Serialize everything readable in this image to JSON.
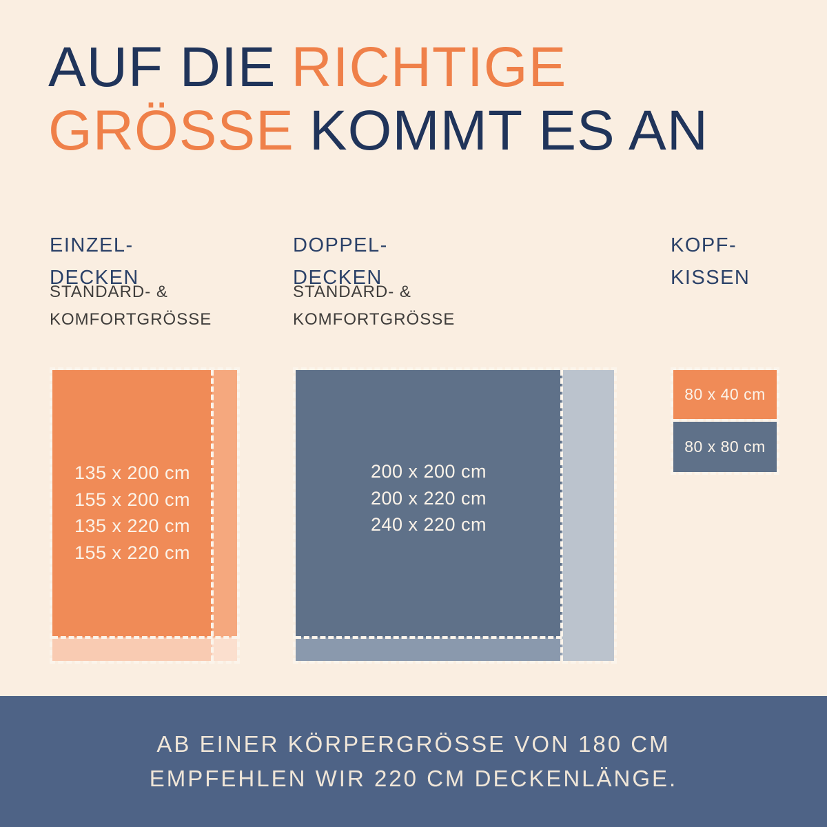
{
  "title": {
    "part1": "AUF DIE",
    "part2": "RICHTIGE",
    "part3": "GRÖSSE",
    "part4": "KOMMT ES AN"
  },
  "columns": {
    "single": {
      "heading_line1": "EINZEL-",
      "heading_line2": "DECKEN",
      "subheading_line1": "STANDARD- &",
      "subheading_line2": "KOMFORTGRÖSSE",
      "sizes": [
        "135 x 200 cm",
        "155 x 200 cm",
        "135 x 220 cm",
        "155 x 220 cm"
      ]
    },
    "double": {
      "heading_line1": "DOPPEL-",
      "heading_line2": "DECKEN",
      "subheading_line1": "STANDARD- &",
      "subheading_line2": "KOMFORTGRÖSSE",
      "sizes": [
        "200 x 200 cm",
        "200 x 220 cm",
        "240 x 220 cm"
      ]
    },
    "pillows": {
      "heading_line1": "KOPF-",
      "heading_line2": "KISSEN",
      "small_size": "80 x 40 cm",
      "large_size": "80 x 80 cm"
    }
  },
  "footer": {
    "line1": "AB EINER KÖRPERGRÖSSE VON 180 CM",
    "line2": "EMPFEHLEN WIR 220 CM DECKENLÄNGE."
  },
  "colors": {
    "background": "#FAEEE1",
    "navy_text": "#20345A",
    "orange_text": "#EF8049",
    "heading_navy": "#2B4168",
    "subheading_gray": "#3F3D3B",
    "orange_standard": "#F08B57",
    "orange_comfort_width": "#F5A87E",
    "orange_comfort_length": "#F9CBB2",
    "orange_comfort_corner": "#FBDFCE",
    "blue_standard": "#5F7189",
    "blue_comfort_length": "#8A99AD",
    "blue_comfort_width": "#BBC3CD",
    "footer_band": "#4E6386",
    "footer_text": "#F0E6D8",
    "dash": "#FBF4EB"
  }
}
